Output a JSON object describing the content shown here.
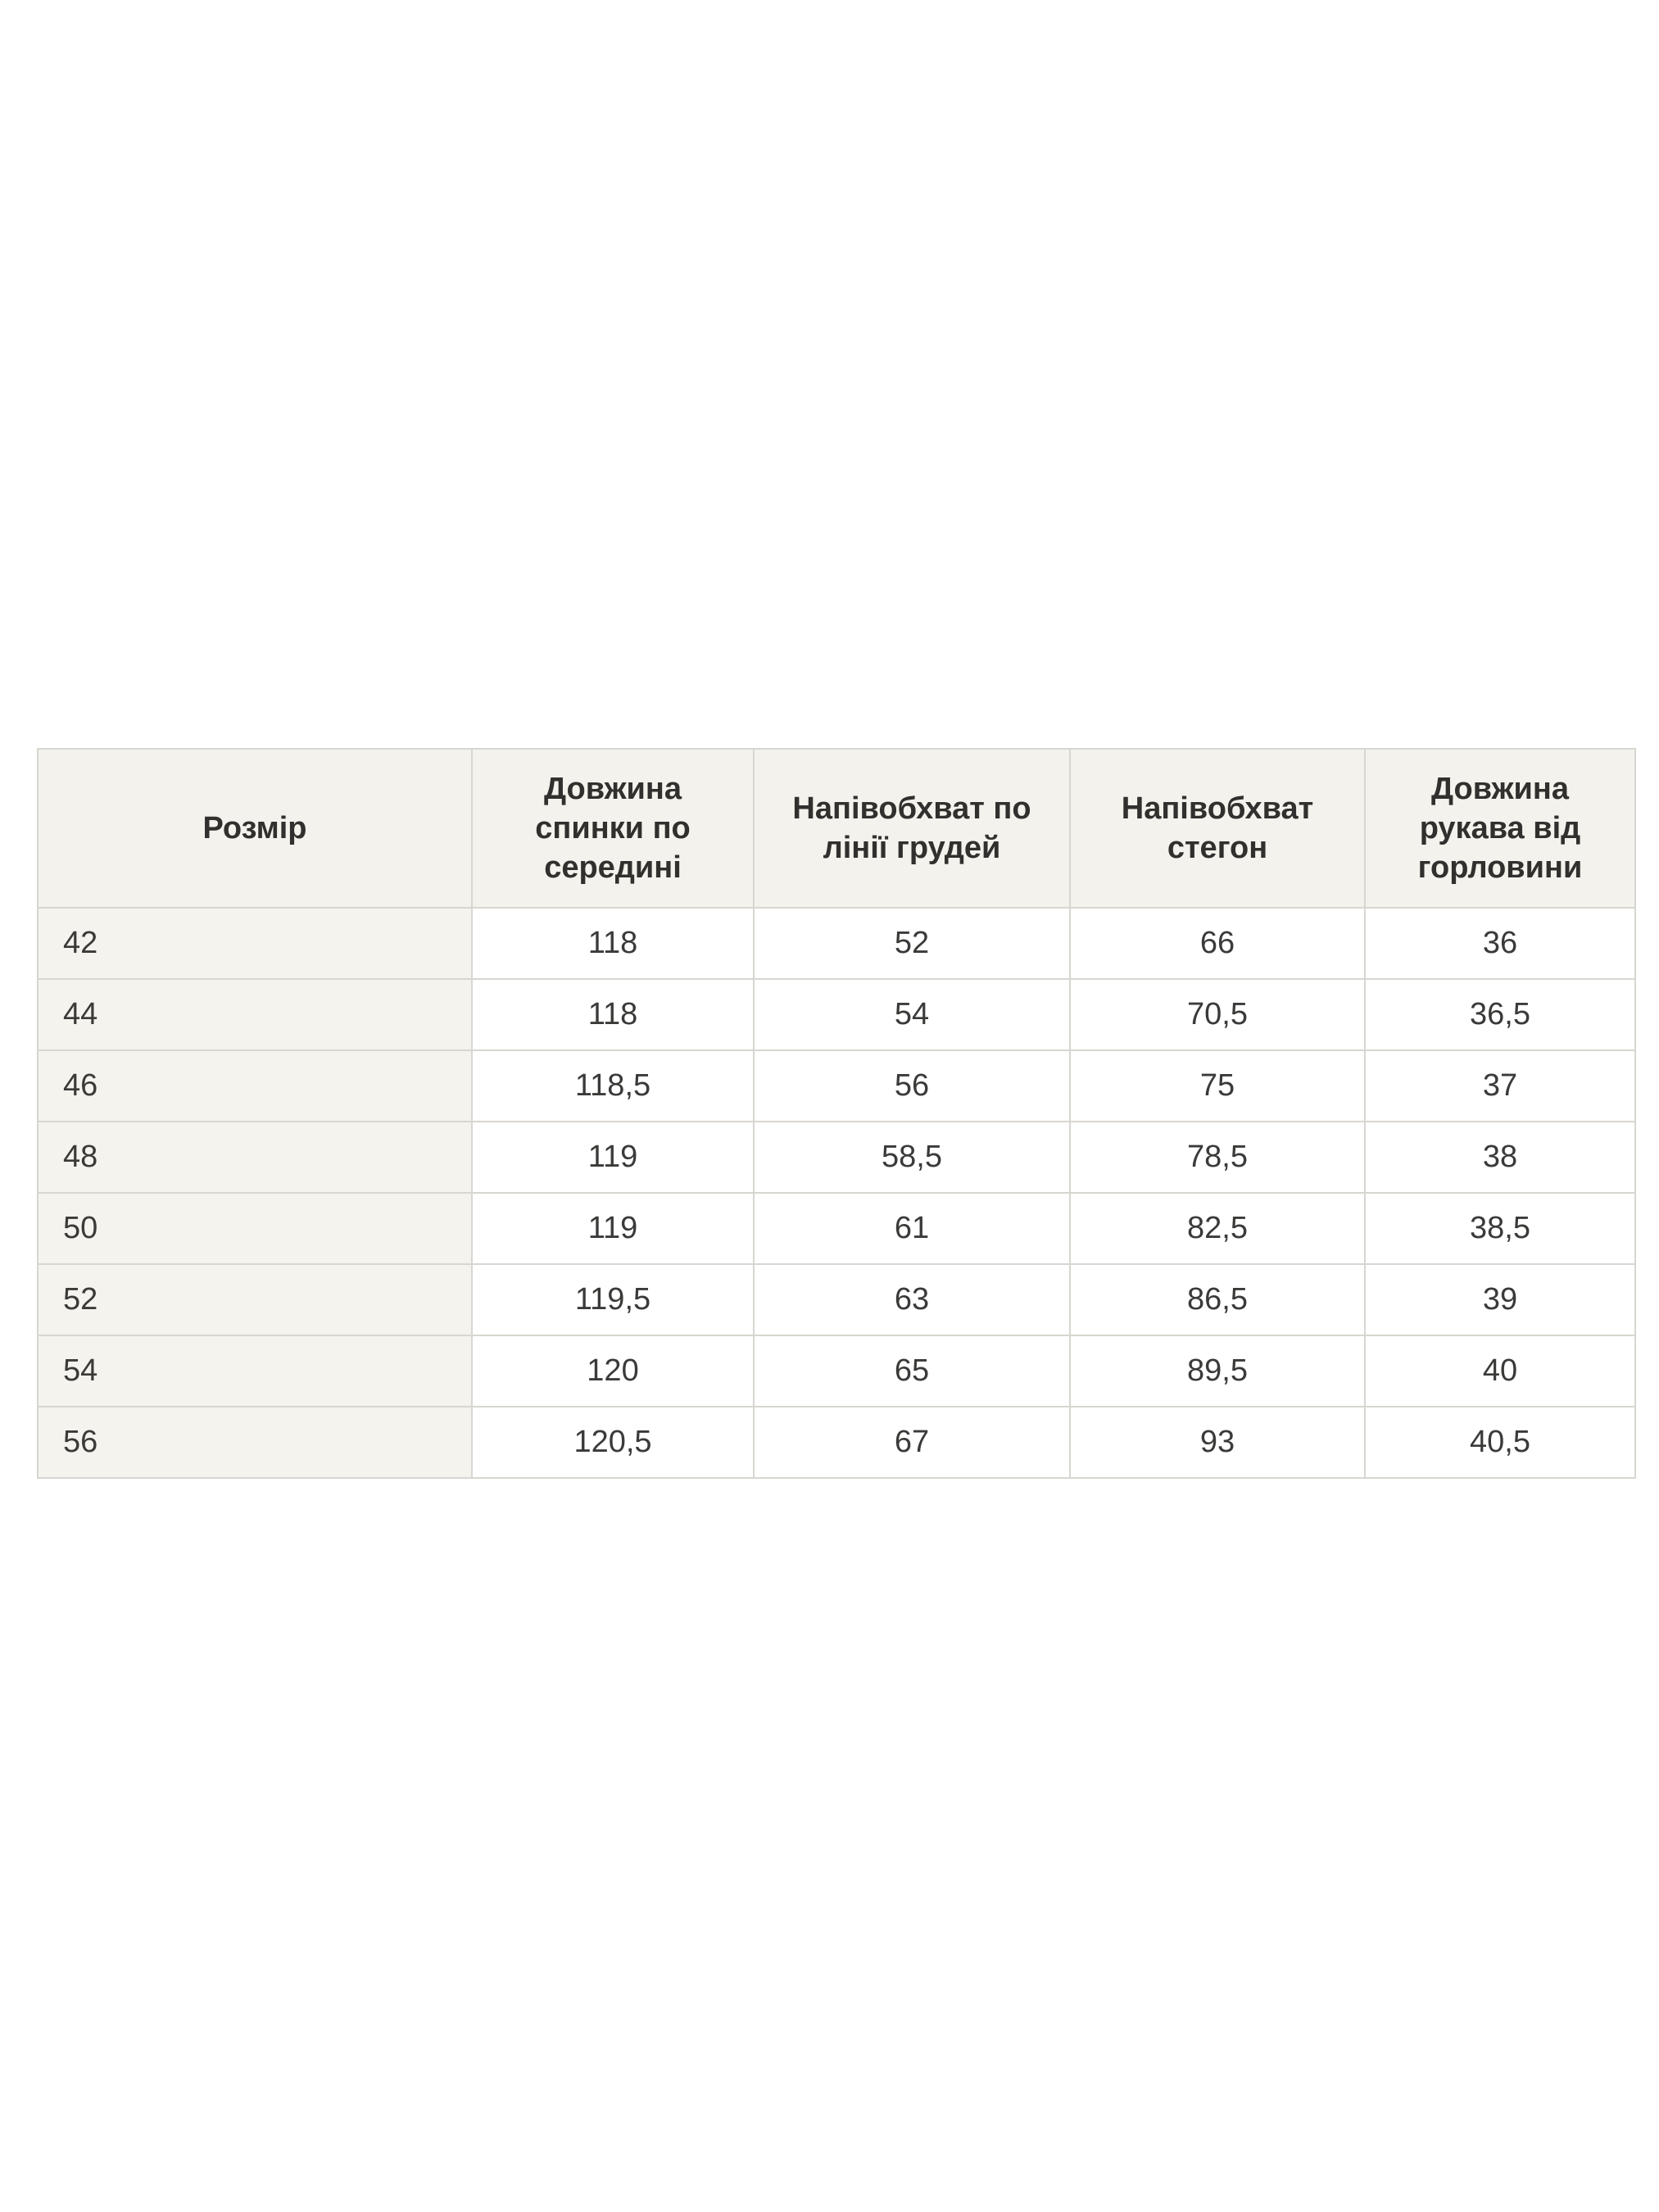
{
  "table": {
    "columns": [
      "Розмір",
      "Довжина спинки по середині",
      "Напівобхват по лінії грудей",
      "Напівобхват стегон",
      "Довжина рукава від горловини"
    ],
    "rows": [
      {
        "size": "42",
        "values": [
          "118",
          "52",
          "66",
          "36"
        ]
      },
      {
        "size": "44",
        "values": [
          "118",
          "54",
          "70,5",
          "36,5"
        ]
      },
      {
        "size": "46",
        "values": [
          "118,5",
          "56",
          "75",
          "37"
        ]
      },
      {
        "size": "48",
        "values": [
          "119",
          "58,5",
          "78,5",
          "38"
        ]
      },
      {
        "size": "50",
        "values": [
          "119",
          "61",
          "82,5",
          "38,5"
        ]
      },
      {
        "size": "52",
        "values": [
          "119,5",
          "63",
          "86,5",
          "39"
        ]
      },
      {
        "size": "54",
        "values": [
          "120",
          "65",
          "89,5",
          "40"
        ]
      },
      {
        "size": "56",
        "values": [
          "120,5",
          "67",
          "93",
          "40,5"
        ]
      }
    ]
  },
  "chart_data": {
    "type": "table",
    "title": "",
    "columns": [
      "Розмір",
      "Довжина спинки по середині",
      "Напівобхват по лінії грудей",
      "Напівобхват стегон",
      "Довжина рукава від горловини"
    ],
    "rows": [
      [
        "42",
        "118",
        "52",
        "66",
        "36"
      ],
      [
        "44",
        "118",
        "54",
        "70,5",
        "36,5"
      ],
      [
        "46",
        "118,5",
        "56",
        "75",
        "37"
      ],
      [
        "48",
        "119",
        "58,5",
        "78,5",
        "38"
      ],
      [
        "50",
        "119",
        "61",
        "82,5",
        "38,5"
      ],
      [
        "52",
        "119,5",
        "63",
        "86,5",
        "39"
      ],
      [
        "54",
        "120",
        "65",
        "89,5",
        "40"
      ],
      [
        "56",
        "120,5",
        "67",
        "93",
        "40,5"
      ]
    ]
  },
  "colors": {
    "page_background": "#ffffff",
    "header_background": "#f3f2ec",
    "first_column_background": "#f4f3ed",
    "cell_background": "#ffffff",
    "border": "#d8d6d0",
    "text": "#3a3937"
  }
}
